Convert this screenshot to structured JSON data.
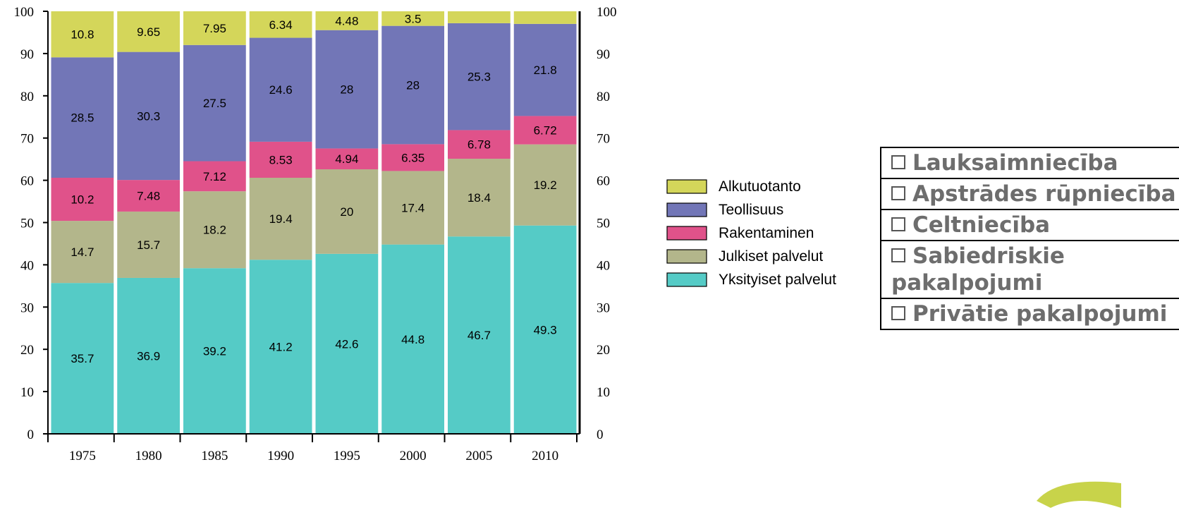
{
  "chart_data": {
    "type": "bar",
    "stacked": true,
    "categories": [
      "1975",
      "1980",
      "1985",
      "1990",
      "1995",
      "2000",
      "2005",
      "2010"
    ],
    "ylim": [
      0,
      100
    ],
    "yticks": [
      0,
      10,
      20,
      30,
      40,
      50,
      60,
      70,
      80,
      90,
      100
    ],
    "ytick_labels": [
      "0",
      "10",
      "20",
      "30",
      "40",
      "50",
      "60",
      "70",
      "80",
      "90",
      "100"
    ],
    "series": [
      {
        "name": "Yksityiset palvelut",
        "color": "#55cbc6",
        "values": [
          35.7,
          36.9,
          39.2,
          41.2,
          42.6,
          44.8,
          46.7,
          49.3
        ],
        "labels": [
          "35.7",
          "36.9",
          "39.2",
          "41.2",
          "42.6",
          "44.8",
          "46.7",
          "49.3"
        ]
      },
      {
        "name": "Julkiset palvelut",
        "color": "#b3b68b",
        "values": [
          14.7,
          15.7,
          18.2,
          19.4,
          20,
          17.4,
          18.4,
          19.2
        ],
        "labels": [
          "14.7",
          "15.7",
          "18.2",
          "19.4",
          "20",
          "17.4",
          "18.4",
          "19.2"
        ]
      },
      {
        "name": "Rakentaminen",
        "color": "#e0528a",
        "values": [
          10.2,
          7.48,
          7.12,
          8.53,
          4.94,
          6.35,
          6.78,
          6.72
        ],
        "labels": [
          "10.2",
          "7.48",
          "7.12",
          "8.53",
          "4.94",
          "6.35",
          "6.78",
          "6.72"
        ]
      },
      {
        "name": "Teollisuus",
        "color": "#7276b7",
        "values": [
          28.5,
          30.3,
          27.5,
          24.6,
          28,
          28,
          25.3,
          21.8
        ],
        "labels": [
          "28.5",
          "30.3",
          "27.5",
          "24.6",
          "28",
          "28",
          "25.3",
          "21.8"
        ]
      },
      {
        "name": "Alkutuotanto",
        "color": "#d4d65a",
        "values": [
          10.8,
          9.65,
          7.95,
          6.34,
          4.48,
          3.5,
          3.0,
          3.2
        ],
        "labels": [
          "10.8",
          "9.65",
          "7.95",
          "6.34",
          "4.48",
          "3.5",
          "",
          ""
        ]
      }
    ],
    "legend_order": [
      "Alkutuotanto",
      "Teollisuus",
      "Rakentaminen",
      "Julkiset palvelut",
      "Yksityiset palvelut"
    ],
    "legend_position": "right",
    "grid": false
  },
  "lv_legend": [
    {
      "label": "Lauksaimniecība"
    },
    {
      "label": "Apstrādes rūpniecība"
    },
    {
      "label": "Celtniecība"
    },
    {
      "label": "Sabiedriskie pakalpojumi"
    },
    {
      "label": "Privātie pakalpojumi"
    }
  ],
  "lv_box_glyph": "❑"
}
